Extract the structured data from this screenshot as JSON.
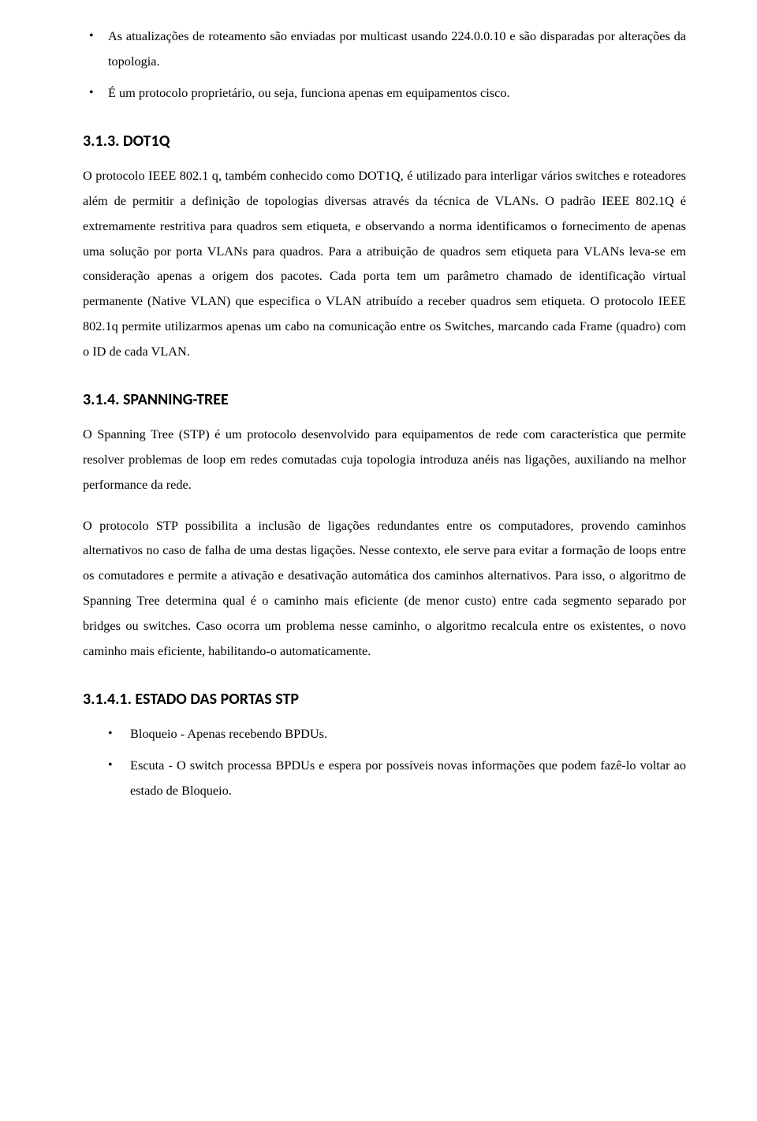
{
  "top_bullets": [
    "As atualizações de roteamento são enviadas por multicast usando 224.0.0.10 e são disparadas por alterações da topologia.",
    "É um protocolo proprietário, ou seja, funciona apenas em equipamentos cisco."
  ],
  "section_dot1q_heading": "3.1.3. DOT1Q",
  "section_dot1q_para": "O protocolo IEEE 802.1 q, também conhecido como DOT1Q, é utilizado para interligar vários switches e roteadores além de permitir a definição de topologias diversas através da técnica de VLANs. O padrão IEEE 802.1Q é extremamente restritiva para quadros sem etiqueta, e observando a norma identificamos o fornecimento de apenas uma solução por porta VLANs para quadros. Para a atribuição de quadros sem etiqueta para VLANs leva-se em consideração apenas a origem dos pacotes. Cada porta tem um parâmetro chamado de identificação virtual permanente (Native VLAN) que especifica o VLAN atribuído a receber quadros sem etiqueta. O protocolo IEEE 802.1q permite utilizarmos apenas um cabo na comunicação entre os Switches, marcando cada Frame (quadro) com o ID de cada VLAN.",
  "section_stp_heading": "3.1.4. SPANNING-TREE",
  "section_stp_para1": "O Spanning Tree (STP) é um protocolo desenvolvido para equipamentos de rede com característica que permite resolver problemas de loop em redes comutadas cuja topologia introduza anéis nas ligações, auxiliando na melhor performance da rede.",
  "section_stp_para2": "O protocolo STP possibilita a inclusão de ligações redundantes entre os computadores, provendo caminhos alternativos no caso de falha de uma destas ligações. Nesse contexto, ele serve para evitar a formação de loops entre os comutadores e permite a ativação e desativação automática dos caminhos alternativos. Para isso, o algoritmo de Spanning Tree determina qual é o caminho mais eficiente (de menor custo) entre cada segmento separado por bridges ou switches. Caso ocorra um problema nesse caminho, o algoritmo recalcula entre os existentes, o novo caminho mais eficiente, habilitando-o automaticamente.",
  "section_stp_states_heading": "3.1.4.1. ESTADO DAS PORTAS STP",
  "stp_states_bullets": [
    "Bloqueio - Apenas recebendo BPDUs.",
    "Escuta - O switch processa BPDUs e espera por possíveis novas informações que podem fazê-lo voltar ao estado de Bloqueio."
  ]
}
